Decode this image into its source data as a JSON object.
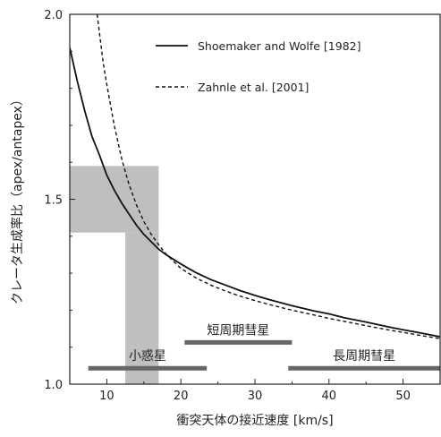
{
  "chart_data": {
    "type": "line",
    "xlabel": "衝突天体の接近速度 [km/s]",
    "ylabel": "クレータ生成率比（apex/antapex）",
    "xlim": [
      5,
      55
    ],
    "ylim": [
      1.0,
      2.0
    ],
    "x_ticks": [
      "10",
      "20",
      "30",
      "40",
      "50"
    ],
    "y_ticks": [
      "1.0",
      "1.5",
      "2.0"
    ],
    "grid": false,
    "legend_position": "top-right",
    "series": [
      {
        "name": "Shoemaker and Wolfe [1982]",
        "style": "solid",
        "x": [
          5,
          6,
          7,
          8,
          9,
          10,
          11,
          12,
          13,
          14,
          15,
          16,
          17,
          18,
          20,
          22,
          24,
          26,
          28,
          30,
          32,
          35,
          38,
          40,
          42,
          45,
          48,
          50,
          52,
          55
        ],
        "y": [
          1.91,
          1.82,
          1.74,
          1.67,
          1.62,
          1.565,
          1.525,
          1.49,
          1.46,
          1.43,
          1.405,
          1.385,
          1.365,
          1.35,
          1.325,
          1.302,
          1.283,
          1.268,
          1.253,
          1.24,
          1.228,
          1.212,
          1.198,
          1.19,
          1.18,
          1.168,
          1.155,
          1.147,
          1.14,
          1.128
        ]
      },
      {
        "name": "Zahnle et al. [2001]",
        "style": "dashed",
        "x": [
          8.7,
          9.5,
          10,
          11,
          12,
          13,
          14,
          15,
          16,
          17,
          18,
          20,
          22,
          24,
          26,
          28,
          30,
          32,
          35,
          38,
          40,
          42,
          45,
          48,
          50,
          52,
          55
        ],
        "y": [
          2.0,
          1.87,
          1.81,
          1.7,
          1.61,
          1.54,
          1.485,
          1.44,
          1.405,
          1.377,
          1.352,
          1.313,
          1.288,
          1.268,
          1.252,
          1.238,
          1.226,
          1.215,
          1.2,
          1.187,
          1.178,
          1.17,
          1.158,
          1.147,
          1.14,
          1.133,
          1.123
        ]
      }
    ],
    "shaded_regions": [
      {
        "x": [
          5,
          17
        ],
        "y": [
          1.41,
          1.59
        ],
        "color": "#bfbfbf"
      },
      {
        "x": [
          12.5,
          17
        ],
        "y": [
          1.0,
          1.41
        ],
        "color": "#bfbfbf"
      }
    ],
    "ranges": [
      {
        "label": "小惑星",
        "x": [
          7.5,
          23.5
        ],
        "y": 1.043,
        "color": "#666666"
      },
      {
        "label": "短周期彗星",
        "x": [
          20.5,
          35
        ],
        "y": 1.113,
        "color": "#666666"
      },
      {
        "label": "長周期彗星",
        "x": [
          34.5,
          55
        ],
        "y": 1.043,
        "color": "#666666"
      }
    ]
  }
}
